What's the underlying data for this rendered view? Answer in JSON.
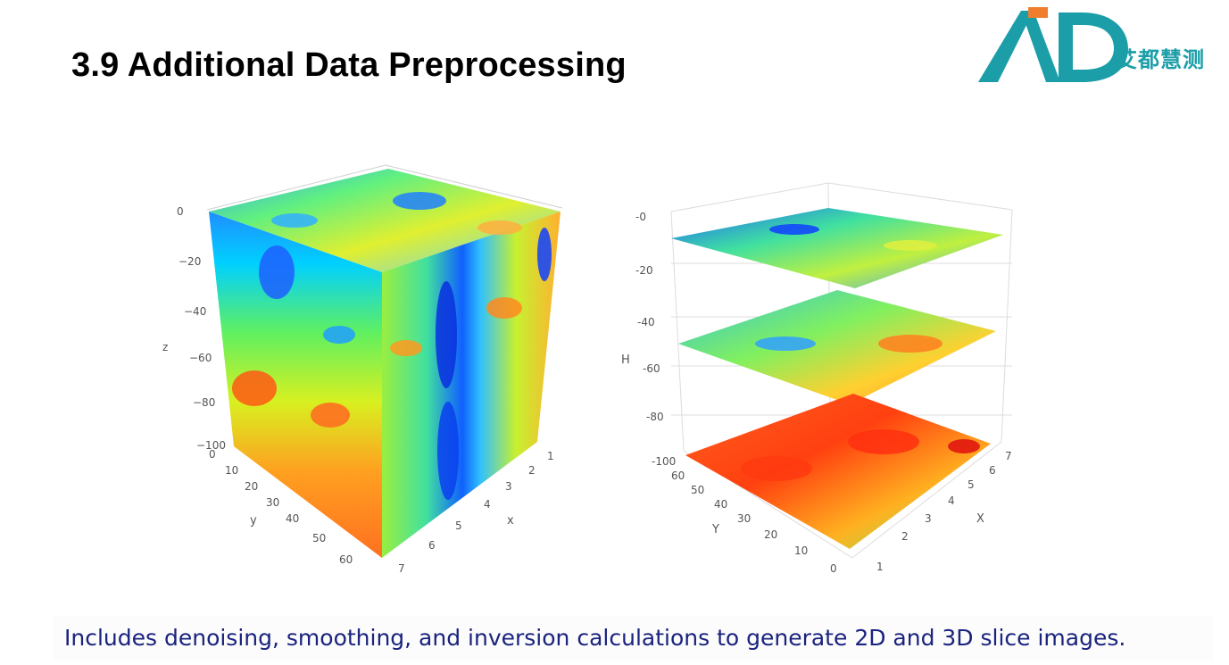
{
  "slide": {
    "title": "3.9 Additional Data Preprocessing",
    "caption": "Includes denoising, smoothing, and inversion calculations to generate 2D and 3D slice images.",
    "brand_name": "艾都慧测",
    "brand_colors": {
      "teal": "#1b9ea8",
      "orange": "#f07e2e"
    }
  },
  "chart_data": [
    {
      "type": "heatmap",
      "subtype": "3d-volume-cube",
      "colormap": "jet",
      "axes": {
        "z": {
          "label": "z",
          "range": [
            -100,
            0
          ],
          "ticks": [
            "0",
            "−20",
            "−40",
            "−60",
            "−80",
            "−100"
          ]
        },
        "y": {
          "label": "y",
          "range": [
            0,
            60
          ],
          "ticks": [
            "0",
            "10",
            "20",
            "30",
            "40",
            "50",
            "60"
          ]
        },
        "x": {
          "label": "x",
          "range": [
            1,
            7
          ],
          "ticks": [
            "1",
            "2",
            "3",
            "4",
            "5",
            "6",
            "7"
          ]
        }
      },
      "grid": true
    },
    {
      "type": "heatmap",
      "subtype": "3d-horizontal-slices",
      "colormap": "jet",
      "slice_depths": [
        -10,
        -45,
        -95
      ],
      "axes": {
        "H": {
          "label": "H",
          "range": [
            -100,
            0
          ],
          "ticks": [
            "-0",
            "-20",
            "-40",
            "-60",
            "-80",
            "-100"
          ]
        },
        "Y": {
          "label": "Y",
          "range": [
            0,
            60
          ],
          "ticks": [
            "0",
            "10",
            "20",
            "30",
            "40",
            "50",
            "60"
          ]
        },
        "X": {
          "label": "X",
          "range": [
            1,
            7
          ],
          "ticks": [
            "1",
            "2",
            "3",
            "4",
            "5",
            "6",
            "7"
          ]
        }
      },
      "grid": true
    }
  ]
}
